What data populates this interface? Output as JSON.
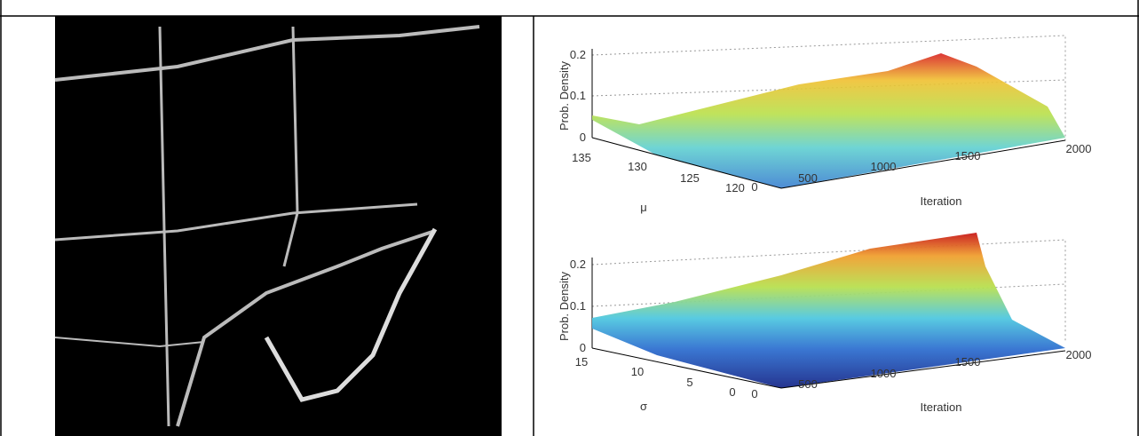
{
  "figure": {
    "plots": [
      {
        "z_label": "Prob. Density",
        "z_ticks": [
          "0.2",
          "0.1",
          "0"
        ],
        "x_label": "μ",
        "x_ticks": [
          "135",
          "130",
          "125",
          "120"
        ],
        "y_label": "Iteration",
        "y_ticks": [
          "0",
          "500",
          "1000",
          "1500",
          "2000"
        ]
      },
      {
        "z_label": "Prob. Density",
        "z_ticks": [
          "0.2",
          "0.1",
          "0"
        ],
        "x_label": "σ",
        "x_ticks": [
          "15",
          "10",
          "5",
          "0"
        ],
        "y_label": "Iteration",
        "y_ticks": [
          "0",
          "500",
          "1000",
          "1500",
          "2000"
        ]
      }
    ]
  }
}
